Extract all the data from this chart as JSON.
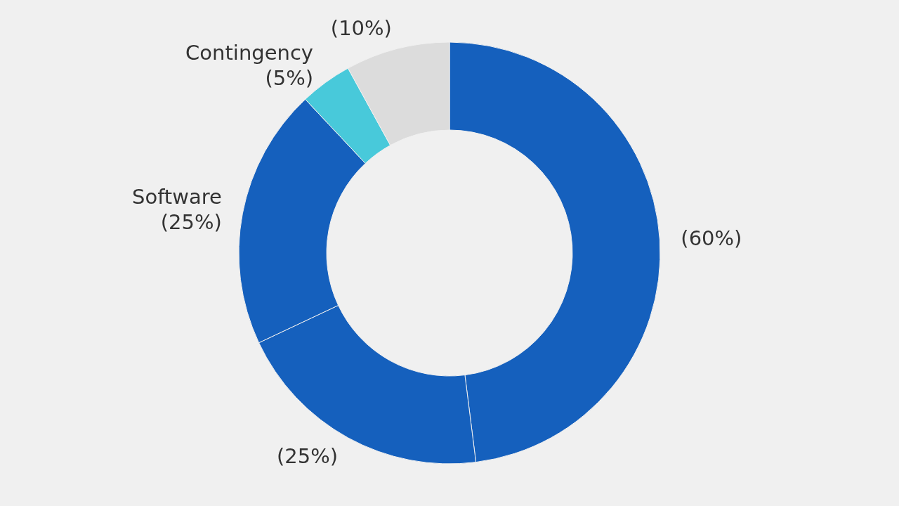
{
  "chart_data": {
    "type": "donut",
    "categories": [
      null,
      null,
      "Software",
      "Contingency",
      null
    ],
    "values": [
      60,
      25,
      25,
      5,
      10
    ],
    "value_labels": [
      "(60%)",
      "(25%)",
      "(25%)",
      "(5%)",
      "(10%)"
    ],
    "colors": [
      "#1560bd",
      "#1560bd",
      "#1560bd",
      "#48c9da",
      "#dcdcdc"
    ]
  }
}
